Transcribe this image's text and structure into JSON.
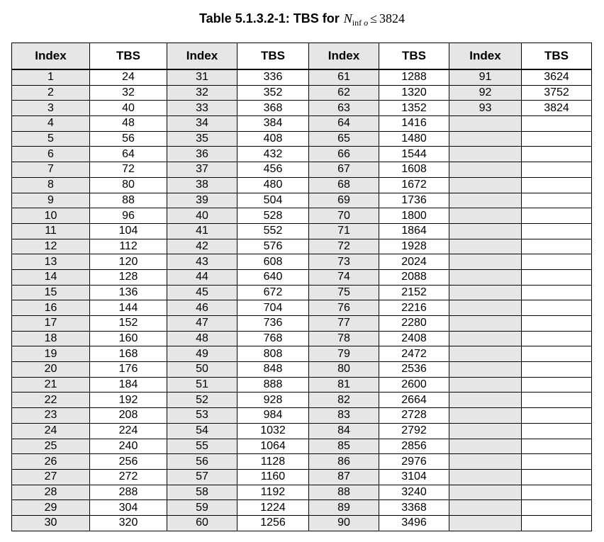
{
  "caption": {
    "prefix": "Table 5.1.3.2-1: TBS for",
    "math_var": "N",
    "math_sub_upright": "inf",
    "math_sub_italic": "o",
    "math_rel": "≤",
    "math_value": "3824"
  },
  "table": {
    "headers": [
      "Index",
      "TBS",
      "Index",
      "TBS",
      "Index",
      "TBS",
      "Index",
      "TBS"
    ],
    "rows": [
      [
        "1",
        "24",
        "31",
        "336",
        "61",
        "1288",
        "91",
        "3624"
      ],
      [
        "2",
        "32",
        "32",
        "352",
        "62",
        "1320",
        "92",
        "3752"
      ],
      [
        "3",
        "40",
        "33",
        "368",
        "63",
        "1352",
        "93",
        "3824"
      ],
      [
        "4",
        "48",
        "34",
        "384",
        "64",
        "1416",
        "",
        ""
      ],
      [
        "5",
        "56",
        "35",
        "408",
        "65",
        "1480",
        "",
        ""
      ],
      [
        "6",
        "64",
        "36",
        "432",
        "66",
        "1544",
        "",
        ""
      ],
      [
        "7",
        "72",
        "37",
        "456",
        "67",
        "1608",
        "",
        ""
      ],
      [
        "8",
        "80",
        "38",
        "480",
        "68",
        "1672",
        "",
        ""
      ],
      [
        "9",
        "88",
        "39",
        "504",
        "69",
        "1736",
        "",
        ""
      ],
      [
        "10",
        "96",
        "40",
        "528",
        "70",
        "1800",
        "",
        ""
      ],
      [
        "11",
        "104",
        "41",
        "552",
        "71",
        "1864",
        "",
        ""
      ],
      [
        "12",
        "112",
        "42",
        "576",
        "72",
        "1928",
        "",
        ""
      ],
      [
        "13",
        "120",
        "43",
        "608",
        "73",
        "2024",
        "",
        ""
      ],
      [
        "14",
        "128",
        "44",
        "640",
        "74",
        "2088",
        "",
        ""
      ],
      [
        "15",
        "136",
        "45",
        "672",
        "75",
        "2152",
        "",
        ""
      ],
      [
        "16",
        "144",
        "46",
        "704",
        "76",
        "2216",
        "",
        ""
      ],
      [
        "17",
        "152",
        "47",
        "736",
        "77",
        "2280",
        "",
        ""
      ],
      [
        "18",
        "160",
        "48",
        "768",
        "78",
        "2408",
        "",
        ""
      ],
      [
        "19",
        "168",
        "49",
        "808",
        "79",
        "2472",
        "",
        ""
      ],
      [
        "20",
        "176",
        "50",
        "848",
        "80",
        "2536",
        "",
        ""
      ],
      [
        "21",
        "184",
        "51",
        "888",
        "81",
        "2600",
        "",
        ""
      ],
      [
        "22",
        "192",
        "52",
        "928",
        "82",
        "2664",
        "",
        ""
      ],
      [
        "23",
        "208",
        "53",
        "984",
        "83",
        "2728",
        "",
        ""
      ],
      [
        "24",
        "224",
        "54",
        "1032",
        "84",
        "2792",
        "",
        ""
      ],
      [
        "25",
        "240",
        "55",
        "1064",
        "85",
        "2856",
        "",
        ""
      ],
      [
        "26",
        "256",
        "56",
        "1128",
        "86",
        "2976",
        "",
        ""
      ],
      [
        "27",
        "272",
        "57",
        "1160",
        "87",
        "3104",
        "",
        ""
      ],
      [
        "28",
        "288",
        "58",
        "1192",
        "88",
        "3240",
        "",
        ""
      ],
      [
        "29",
        "304",
        "59",
        "1224",
        "89",
        "3368",
        "",
        ""
      ],
      [
        "30",
        "320",
        "60",
        "1256",
        "90",
        "3496",
        "",
        ""
      ]
    ]
  },
  "colors": {
    "index_column_shade": "#e6e6e6",
    "border": "#000000"
  }
}
